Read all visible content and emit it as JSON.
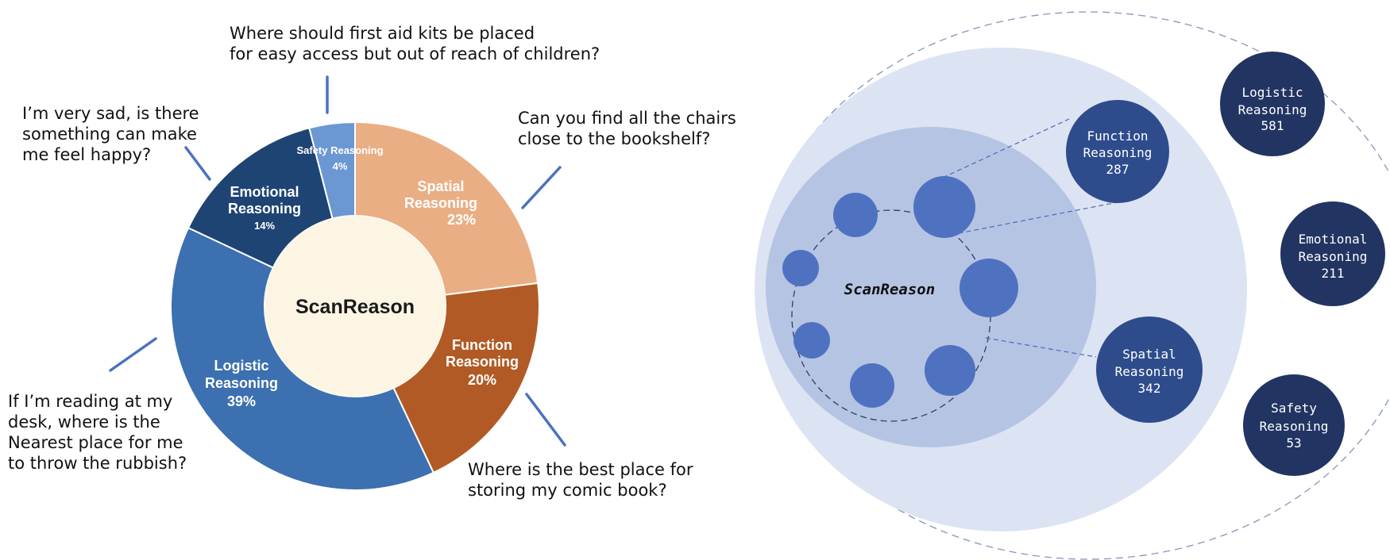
{
  "donut": {
    "center_label": "ScanReason",
    "segments": [
      {
        "line1": "Spatial",
        "line2": "Reasoning",
        "pct": "23%",
        "value": 23,
        "color": "#eaae84"
      },
      {
        "line1": "Function",
        "line2": "Reasoning",
        "pct": "20%",
        "value": 20,
        "color": "#b25a25"
      },
      {
        "line1": "Logistic",
        "line2": "Reasoning",
        "pct": "39%",
        "value": 39,
        "color": "#3c70b0"
      },
      {
        "line1": "Emotional",
        "line2": "Reasoning",
        "pct": "14%",
        "value": 14,
        "color": "#1e4474"
      },
      {
        "line1": "Safety Reasoning",
        "line2": "",
        "pct": "4%",
        "value": 4,
        "color": "#6b98d3"
      }
    ]
  },
  "questions": {
    "safety": [
      "Where should first aid kits be placed",
      "for easy access but out of reach of children?"
    ],
    "emotional": [
      "I’m very sad, is there",
      "something can make",
      "me feel happy?"
    ],
    "spatial": [
      "Can you find all the chairs",
      "close to the bookshelf?"
    ],
    "logistic": [
      "If I’m reading at my",
      "desk, where is the",
      "Nearest place for me",
      "to throw the rubbish?"
    ],
    "function": [
      "Where is the best place for",
      "storing my comic book?"
    ]
  },
  "hierarchy": {
    "center_label": "ScanReason",
    "bubbles": [
      {
        "line1": "Function",
        "line2": "Reasoning",
        "count": "287"
      },
      {
        "line1": "Spatial",
        "line2": "Reasoning",
        "count": "342"
      },
      {
        "line1": "Logistic",
        "line2": "Reasoning",
        "count": "581"
      },
      {
        "line1": "Emotional",
        "line2": "Reasoning",
        "count": "211"
      },
      {
        "line1": "Safety",
        "line2": "Reasoning",
        "count": "53"
      }
    ]
  },
  "colors": {
    "question_line": "#4a72c0",
    "outer_circle": "#dce3f2",
    "inner_circle": "#b5c4e3",
    "node": "#4f72c0",
    "bubble_dark": "#223462",
    "bubble_mid": "#2e4c8c"
  }
}
